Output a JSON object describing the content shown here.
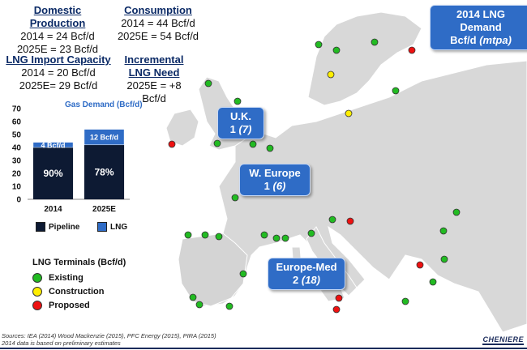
{
  "stats": {
    "domestic_production": {
      "title": "Domestic Production",
      "line1": "2014 = 24 Bcf/d",
      "line2": "2025E = 23 Bcf/d"
    },
    "consumption": {
      "title": "Consumption",
      "line1": "2014 = 44 Bcf/d",
      "line2": "2025E = 54 Bcf/d"
    },
    "lng_import_capacity": {
      "title": "LNG Import Capacity",
      "line1": "2014 = 20 Bcf/d",
      "line2": "2025E= 29 Bcf/d"
    },
    "incremental_lng_need": {
      "title1": "Incremental",
      "title2": "LNG Need",
      "line1": "2025E = +8 Bcf/d"
    }
  },
  "map_title": {
    "line1": "2014 LNG Demand",
    "line2_prefix": "Bcf/d ",
    "line2_italic": "(mtpa)"
  },
  "callouts": [
    {
      "name": "U.K.",
      "bcfd": "1",
      "mtpa": "(7)"
    },
    {
      "name": "W. Europe",
      "bcfd": "1",
      "mtpa": "(6)"
    },
    {
      "name": "Europe-Med",
      "bcfd": "2",
      "mtpa": "(18)"
    }
  ],
  "chart_data": {
    "type": "bar",
    "title": "Gas Demand (Bcf/d)",
    "categories": [
      "2014",
      "2025E"
    ],
    "series": [
      {
        "name": "Pipeline",
        "values": [
          40,
          42
        ],
        "color": "#0d1a33"
      },
      {
        "name": "LNG",
        "values": [
          4,
          12
        ],
        "color": "#2f6cc6"
      }
    ],
    "bar_labels_pipeline": [
      "90%",
      "78%"
    ],
    "bar_labels_lng": [
      "4 Bcf/d",
      "12 Bcf/d"
    ],
    "ylim": [
      0,
      70
    ],
    "yticks": [
      "0",
      "10",
      "20",
      "30",
      "40",
      "50",
      "60",
      "70"
    ],
    "legend_placement": "bottom"
  },
  "terminals": {
    "title": "LNG Terminals (Bcf/d)",
    "items": [
      {
        "label": "Existing",
        "color": "#22bb22"
      },
      {
        "label": "Construction",
        "color": "#ffee00"
      },
      {
        "label": "Proposed",
        "color": "#ee1111"
      }
    ]
  },
  "footer": {
    "sources": "Sources: IEA (2014) Wood Mackenzie (2015), PFC Energy (2015), PIRA (2015)",
    "note": "2014 data is based on preliminary estimates",
    "logo": "CHENIERE"
  },
  "colors": {
    "land": "#d8d8d8",
    "border": "#ffffff",
    "sea": "#ffffff",
    "callout": "#2f6cc6"
  }
}
